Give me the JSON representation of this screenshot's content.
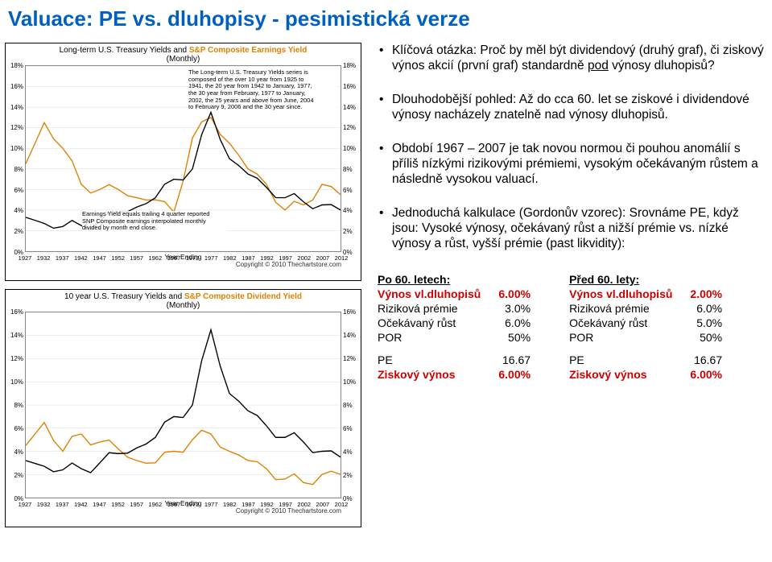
{
  "title": "Valuace: PE vs. dluhopisy - pesimistická verze",
  "chart1": {
    "title_pre": "Long-term U.S. Treasury Yields",
    "title_mid": " and ",
    "title_orange": "S&P Composite Earnings Yield",
    "title_sub": "(Monthly)",
    "ytick_labels": [
      "18%",
      "16%",
      "14%",
      "12%",
      "10%",
      "8%",
      "6%",
      "4%",
      "2%",
      "0%"
    ],
    "ytick_vals": [
      18,
      16,
      14,
      12,
      10,
      8,
      6,
      4,
      2,
      0
    ],
    "ymin": 0,
    "ymax": 18,
    "earnings": [
      8.5,
      12.5,
      10.0,
      6.5,
      6.0,
      6.0,
      5.2,
      5.0,
      3.8,
      11.0,
      13.0,
      10.5,
      8.0,
      6.5,
      4.0,
      4.5,
      6.5,
      5.5
    ],
    "treasury": [
      3.3,
      2.7,
      2.4,
      2.5,
      2.9,
      3.8,
      4.3,
      5.2,
      7.0,
      8.0,
      13.5,
      9.0,
      7.5,
      6.2,
      5.2,
      4.8,
      4.5,
      4.0
    ],
    "note_lines": [
      "The Long-term U.S. Treasury Yields series is",
      "composed of the over 10 year from 1925 to",
      "1941, the 20 year from 1942 to January, 1977,",
      "the 30 year from February, 1977 to January,",
      "2002, the 25 years and above from June, 2004",
      "to February 9, 2006 and the 30 year since."
    ],
    "end_note": [
      "Earnings Yield equals trailing 4 quarter reported",
      "SNP Composite earnings interpolated monthly",
      "divided by month end close."
    ],
    "year_label": "Year Ending",
    "copyright": "Copyright © 2010 Thechartstore.com"
  },
  "chart2": {
    "title_pre": "10 year U.S. Treasury Yields",
    "title_mid": " and ",
    "title_orange": "S&P Composite Dividend Yield",
    "title_sub": "(Monthly)",
    "ytick_labels": [
      "16%",
      "14%",
      "12%",
      "10%",
      "8%",
      "6%",
      "4%",
      "2%",
      "0%"
    ],
    "ytick_vals": [
      16,
      14,
      12,
      10,
      8,
      6,
      4,
      2,
      0
    ],
    "ymin": 0,
    "ymax": 16,
    "dividend": [
      4.5,
      6.5,
      4.0,
      5.5,
      4.8,
      4.2,
      3.2,
      3.0,
      4.0,
      5.0,
      5.5,
      4.0,
      3.2,
      2.5,
      1.6,
      1.3,
      2.0,
      2.0
    ],
    "treasury": [
      3.2,
      2.7,
      2.4,
      2.5,
      3.0,
      3.8,
      4.3,
      5.2,
      7.0,
      8.0,
      14.5,
      9.0,
      7.5,
      6.2,
      5.2,
      4.8,
      4.0,
      3.5
    ],
    "year_label": "Year Ending",
    "copyright": "Copyright © 2010 Thechartstore.com"
  },
  "xticks": [
    "1927",
    "1932",
    "1937",
    "1942",
    "1947",
    "1952",
    "1957",
    "1962",
    "1967",
    "1972",
    "1977",
    "1982",
    "1987",
    "1992",
    "1997",
    "2002",
    "2007",
    "2012"
  ],
  "bullets": [
    {
      "pre": "Klíčová otázka: Proč by měl být dividendový (druhý graf), či ziskový výnos akcií (první graf) standardně ",
      "u": "pod",
      "post": " výnosy dluhopisů?"
    },
    {
      "pre": "Dlouhodobější pohled: Až do cca 60. let se ziskové i dividendové výnosy nacházely znatelně nad výnosy dluhopisů.",
      "u": "",
      "post": ""
    },
    {
      "pre": "Období 1967 – 2007 je tak novou normou či pouhou anomálií s příliš nízkými rizikovými prémiemi, vysokým očekávaným růstem a následně vysokou valuací.",
      "u": "",
      "post": ""
    },
    {
      "pre": "Jednoduchá kalkulace (Gordonův vzorec): Srovnáme PE, když jsou: Vysoké výnosy, očekávaný růst a nižší prémie vs. nízké výnosy a růst, vyšší prémie (past likvidity):",
      "u": "",
      "post": ""
    }
  ],
  "table_left": {
    "head": "Po 60. letech:",
    "rows": [
      {
        "lab": "Výnos vl.dluhopisů",
        "val": "6.00%",
        "red": true
      },
      {
        "lab": "Riziková prémie",
        "val": "3.0%",
        "red": false
      },
      {
        "lab": "Očekávaný růst",
        "val": "6.0%",
        "red": false
      },
      {
        "lab": "POR",
        "val": "50%",
        "red": false
      }
    ],
    "rows2": [
      {
        "lab": "PE",
        "val": "16.67",
        "red": false
      },
      {
        "lab": "Ziskový výnos",
        "val": "6.00%",
        "red": true
      }
    ]
  },
  "table_right": {
    "head": "Před 60. lety:",
    "rows": [
      {
        "lab": "Výnos vl.dluhopisů",
        "val": "2.00%",
        "red": true
      },
      {
        "lab": "Riziková prémie",
        "val": "6.0%",
        "red": false
      },
      {
        "lab": "Očekávaný růst",
        "val": "5.0%",
        "red": false
      },
      {
        "lab": "POR",
        "val": "50%",
        "red": false
      }
    ],
    "rows2": [
      {
        "lab": "PE",
        "val": "16.67",
        "red": false
      },
      {
        "lab": "Ziskový výnos",
        "val": "6.00%",
        "red": true
      }
    ]
  },
  "colors": {
    "orange": "#e08000",
    "black": "#000000"
  }
}
